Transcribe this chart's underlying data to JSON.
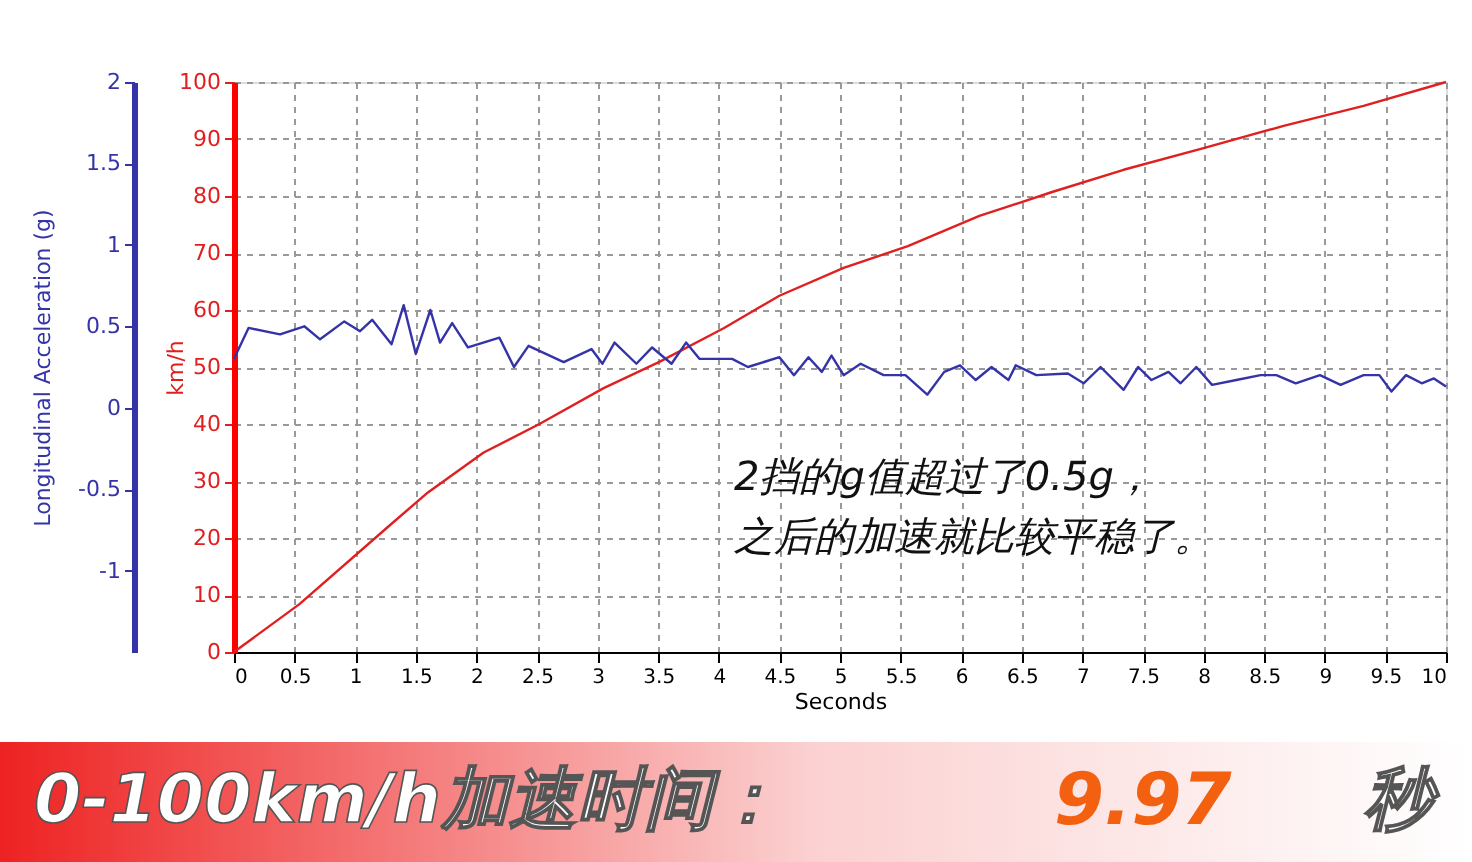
{
  "chart_data": {
    "type": "line",
    "xlabel": "Seconds",
    "ylabel": "km/h",
    "y2label": "Longitudinal Acceleration (g)",
    "xlim": [
      0,
      10
    ],
    "xticks": [
      0,
      0.5,
      1,
      1.5,
      2,
      2.5,
      3,
      3.5,
      4,
      4.5,
      5,
      5.5,
      6,
      6.5,
      7,
      7.5,
      8,
      8.5,
      9,
      9.5,
      10
    ],
    "ylim": [
      0,
      100
    ],
    "yticks": [
      0,
      10,
      20,
      30,
      40,
      50,
      60,
      70,
      80,
      90,
      100
    ],
    "y2lim": [
      -1.5,
      2
    ],
    "y2ticks": [
      -1,
      -0.5,
      0,
      0.5,
      1,
      1.5,
      2
    ],
    "grid": true,
    "line_style": "solid",
    "marker": "none",
    "series": [
      {
        "color": "#e02020",
        "x": [
          0,
          0.54,
          1.3,
          1.6,
          2.06,
          2.52,
          3.05,
          3.51,
          4.04,
          4.5,
          5.03,
          5.56,
          6.15,
          6.75,
          7.34,
          8.0,
          8.66,
          9.32,
          10
        ],
        "values": [
          0,
          8.4,
          22.5,
          28,
          35,
          40,
          46.3,
          50.9,
          56.8,
          62.5,
          67.4,
          71.2,
          76.5,
          80.7,
          84.6,
          88.4,
          92.3,
          95.8,
          100
        ]
      },
      {
        "color": "#3434a8",
        "axis": "y2",
        "x": [
          0,
          0.12,
          0.38,
          0.58,
          0.71,
          0.91,
          1.04,
          1.14,
          1.3,
          1.4,
          1.5,
          1.62,
          1.7,
          1.8,
          1.93,
          2.19,
          2.31,
          2.43,
          2.72,
          2.95,
          3.04,
          3.14,
          3.32,
          3.45,
          3.61,
          3.73,
          3.84,
          4.11,
          4.24,
          4.5,
          4.62,
          4.74,
          4.85,
          4.93,
          5.03,
          5.17,
          5.36,
          5.54,
          5.72,
          5.86,
          5.99,
          6.12,
          6.25,
          6.39,
          6.45,
          6.62,
          6.88,
          7.01,
          7.15,
          7.34,
          7.46,
          7.57,
          7.71,
          7.81,
          7.94,
          8.07,
          8.27,
          8.47,
          8.6,
          8.76,
          8.96,
          9.13,
          9.32,
          9.45,
          9.55,
          9.67,
          9.8,
          9.9,
          10
        ],
        "values": [
          0.3,
          0.49,
          0.45,
          0.5,
          0.42,
          0.53,
          0.47,
          0.54,
          0.39,
          0.63,
          0.33,
          0.6,
          0.4,
          0.52,
          0.37,
          0.43,
          0.25,
          0.38,
          0.28,
          0.36,
          0.27,
          0.4,
          0.27,
          0.37,
          0.27,
          0.4,
          0.3,
          0.3,
          0.25,
          0.31,
          0.2,
          0.31,
          0.22,
          0.32,
          0.2,
          0.27,
          0.2,
          0.2,
          0.08,
          0.22,
          0.26,
          0.17,
          0.25,
          0.17,
          0.26,
          0.2,
          0.21,
          0.15,
          0.25,
          0.11,
          0.25,
          0.17,
          0.22,
          0.15,
          0.25,
          0.14,
          0.17,
          0.2,
          0.2,
          0.15,
          0.2,
          0.14,
          0.2,
          0.2,
          0.1,
          0.2,
          0.15,
          0.18,
          0.13
        ]
      }
    ],
    "annotations": [
      "2挡的g值超过了0.5g，",
      "之后的加速就比较平稳了。",
      "0-100km/h加速时间：",
      "9.97",
      "秒"
    ]
  }
}
